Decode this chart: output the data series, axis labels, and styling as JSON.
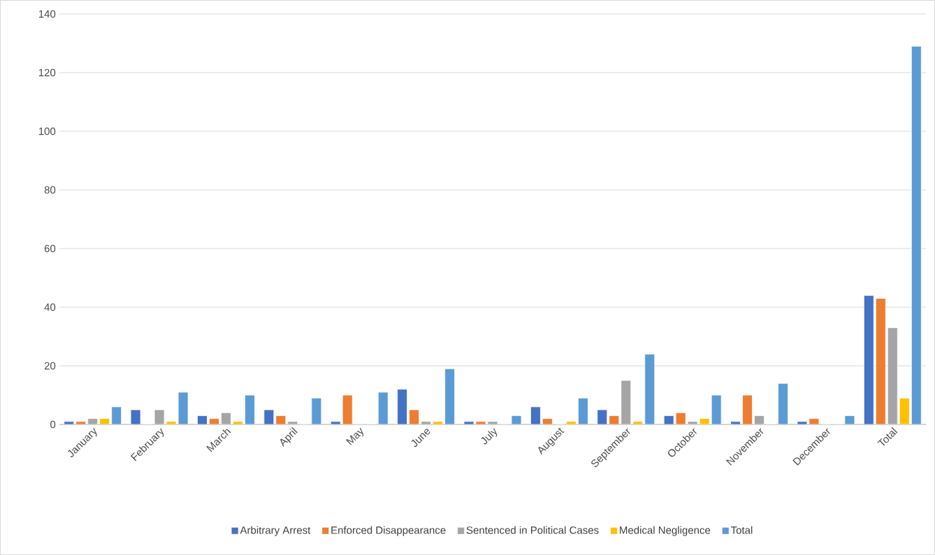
{
  "chart_data": {
    "type": "bar",
    "categories": [
      "January",
      "February",
      "March",
      "April",
      "May",
      "June",
      "July",
      "August",
      "September",
      "October",
      "November",
      "December",
      "Total"
    ],
    "series": [
      {
        "name": "Arbitrary Arrest",
        "color": "#4472c4",
        "values": [
          1,
          5,
          3,
          5,
          1,
          12,
          1,
          6,
          5,
          3,
          1,
          1,
          44
        ]
      },
      {
        "name": "Enforced Disappearance",
        "color": "#ed7d31",
        "values": [
          1,
          0,
          2,
          3,
          10,
          5,
          1,
          2,
          3,
          4,
          10,
          2,
          43
        ]
      },
      {
        "name": "Sentenced in Political Cases",
        "color": "#a5a5a5",
        "values": [
          2,
          5,
          4,
          1,
          0,
          1,
          1,
          0,
          15,
          1,
          3,
          0,
          33
        ]
      },
      {
        "name": "Medical Negligence",
        "color": "#ffc000",
        "values": [
          2,
          1,
          1,
          0,
          0,
          1,
          0,
          1,
          1,
          2,
          0,
          0,
          9
        ]
      },
      {
        "name": "Total",
        "color": "#5b9bd5",
        "values": [
          6,
          11,
          10,
          9,
          11,
          19,
          3,
          9,
          24,
          10,
          14,
          3,
          129
        ]
      }
    ],
    "ylim": [
      0,
      140
    ],
    "yticks": [
      0,
      20,
      40,
      60,
      80,
      100,
      120,
      140
    ],
    "grid": "y",
    "legend": "bottom"
  }
}
